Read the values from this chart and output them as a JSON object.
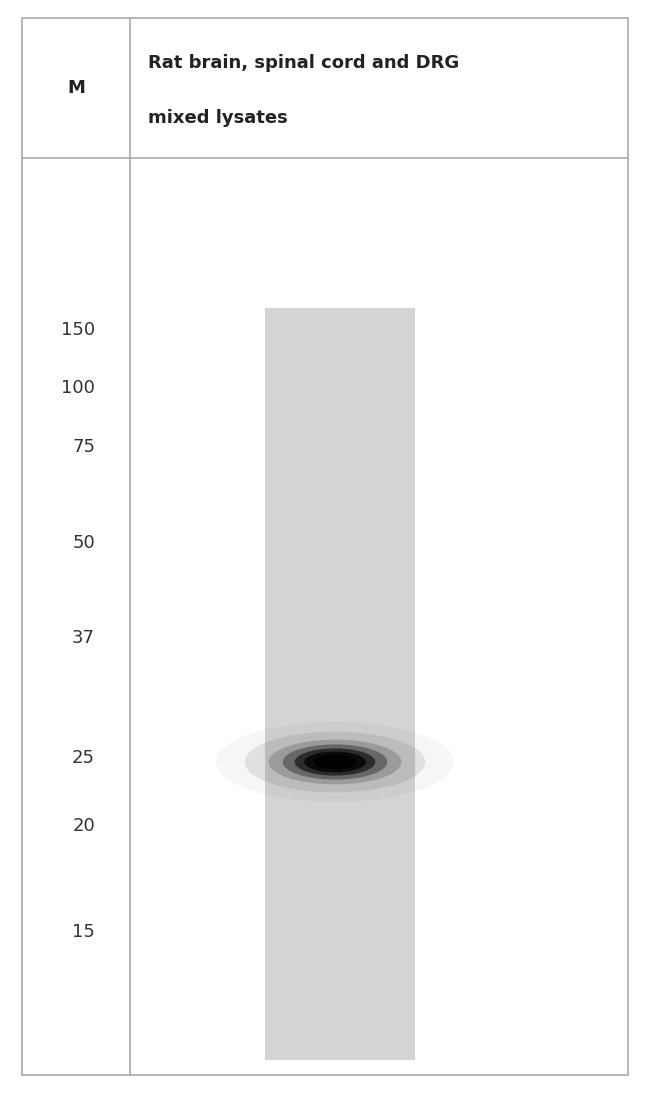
{
  "fig_width": 6.5,
  "fig_height": 10.97,
  "bg_color": "#ffffff",
  "border_color": "#aaaaaa",
  "divider_color": "#aaaaaa",
  "header_row_label": "M",
  "header_col_label_line1": "Rat brain, spinal cord and DRG",
  "header_col_label_line2": "mixed lysates",
  "marker_labels": [
    150,
    100,
    75,
    50,
    37,
    25,
    20,
    15
  ],
  "lane_color": "#d4d4d4",
  "band_color": "#111111",
  "header_font_size": 13,
  "marker_font_size": 13
}
